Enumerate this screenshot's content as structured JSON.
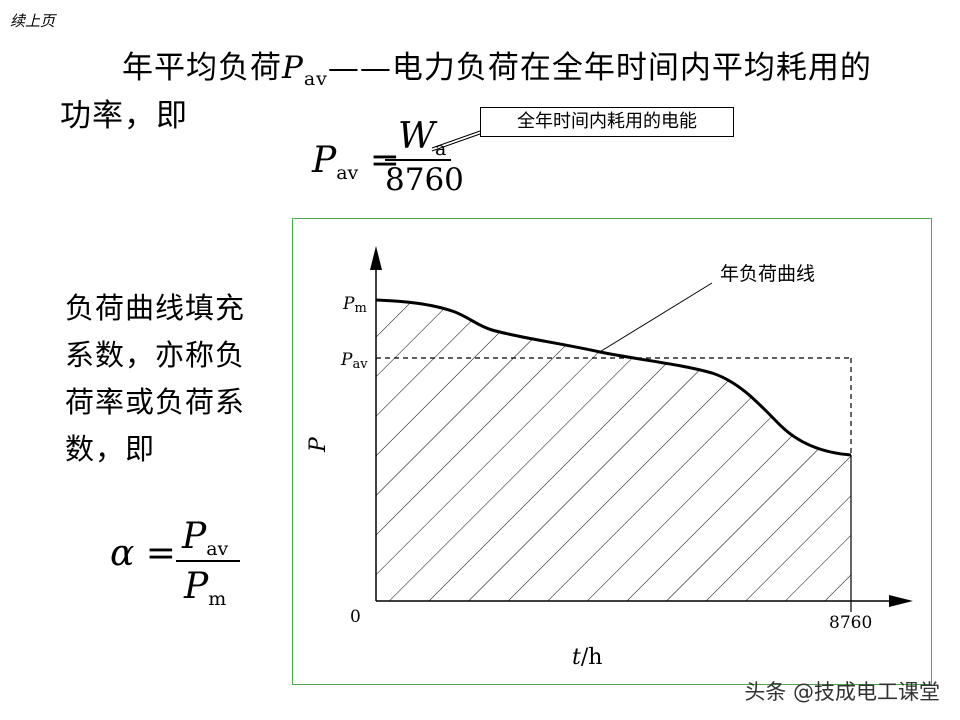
{
  "header": {
    "continued_label": "续上页"
  },
  "definition": {
    "term": "年平均负荷",
    "symbol": "P",
    "symbol_sub": "av",
    "dash": "——",
    "text_rest": "电力负荷在全年时间内平均耗用的",
    "line2": "功率，即"
  },
  "formula1": {
    "lhs_symbol": "P",
    "lhs_sub": "av",
    "equals": "=",
    "num_symbol": "W",
    "num_sub": "a",
    "den": "8760",
    "callout": "全年时间内耗用的电能"
  },
  "side_text": {
    "lines": [
      "负荷曲线填充",
      "系数，亦称负",
      "荷率或负荷系",
      "数，即"
    ]
  },
  "formula2": {
    "lhs": "α",
    "equals": "=",
    "num_symbol": "P",
    "num_sub": "av",
    "den_symbol": "P",
    "den_sub": "m"
  },
  "chart": {
    "curve_label": "年负荷曲线",
    "y_axis_label": "P",
    "x_axis_label_italic": "t",
    "x_axis_label_unit": "/h",
    "origin_label": "0",
    "x_end_label": "8760",
    "pm_symbol": "P",
    "pm_sub": "m",
    "pav_symbol": "P",
    "pav_sub": "av"
  },
  "watermark": "头条 @技成电工课堂"
}
